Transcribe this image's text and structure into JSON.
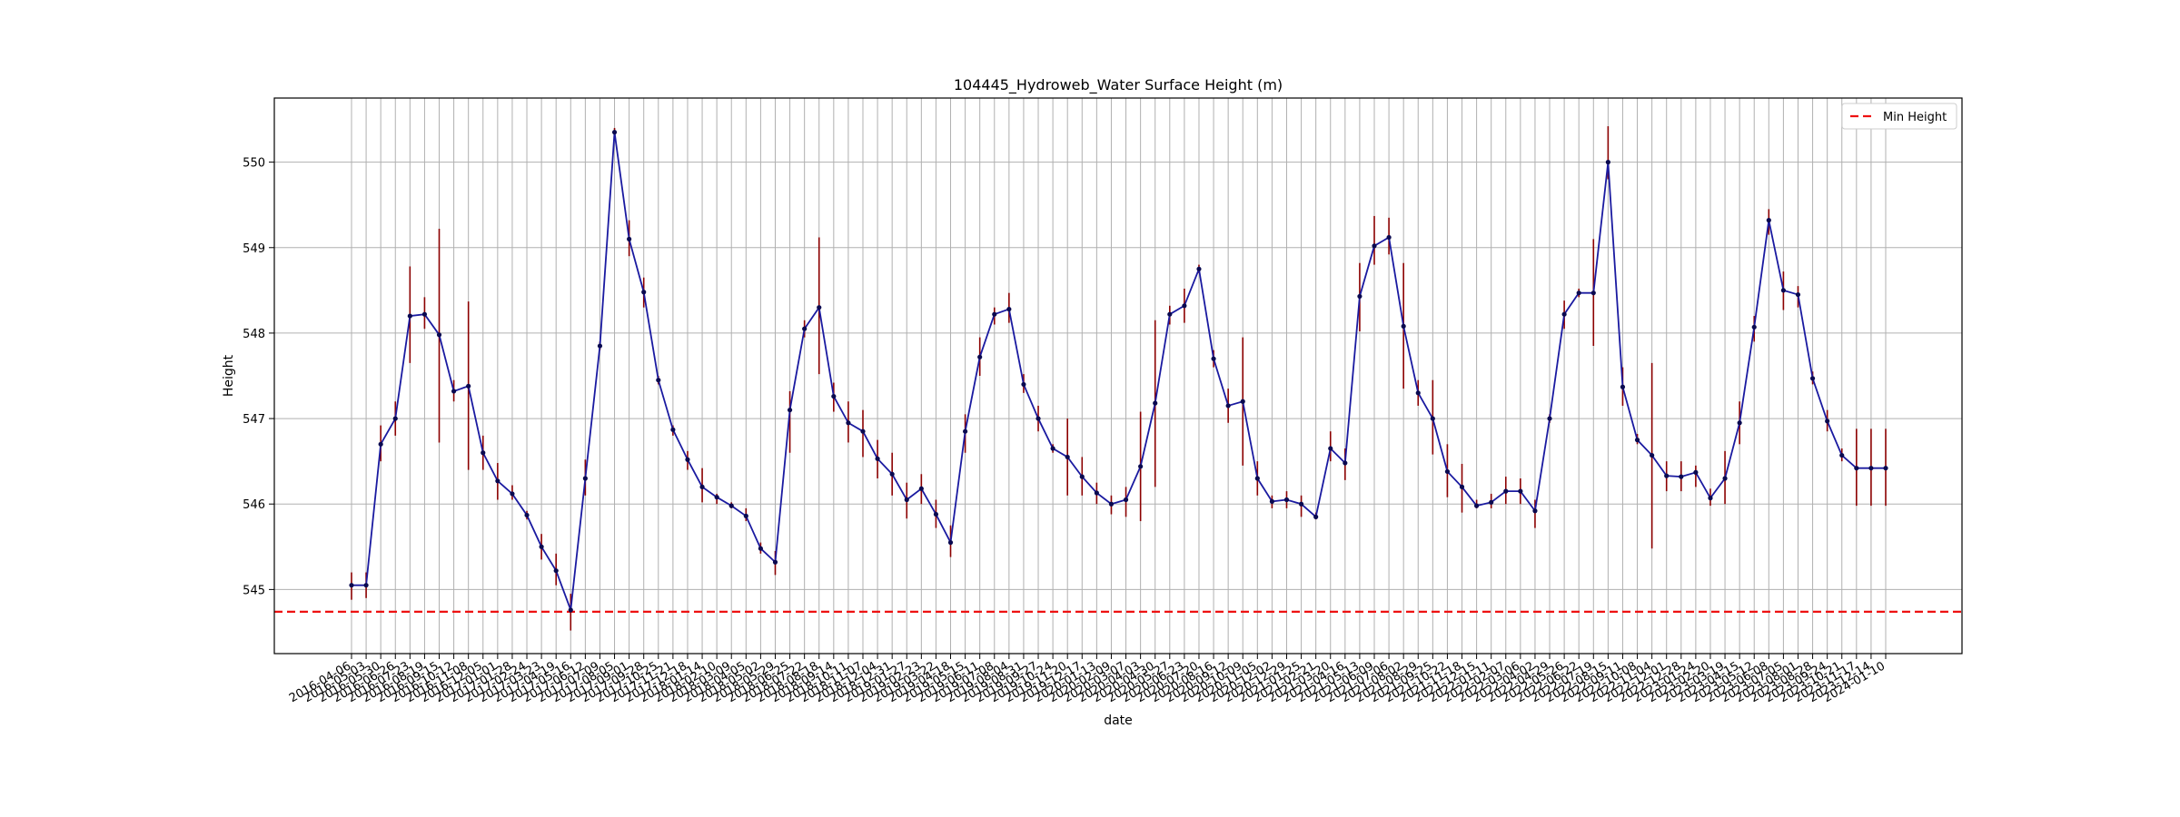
{
  "chart_data": {
    "type": "line",
    "title": "104445_Hydroweb_Water Surface Height (m)",
    "xlabel": "date",
    "ylabel": "Height",
    "ylim": [
      544.25,
      550.75
    ],
    "yticks": [
      545,
      546,
      547,
      548,
      549,
      550
    ],
    "grid": true,
    "legend_position": "top-right",
    "legend": [
      {
        "name": "Min Height",
        "style": "dashed",
        "color": "#ee1111"
      }
    ],
    "min_height": 544.74,
    "colors": {
      "line": "#1a1aa0",
      "marker": "#0a0a50",
      "error": "#8b0000",
      "min_line": "#ee1111",
      "grid": "#b0b0b0"
    },
    "series": [
      {
        "name": "Water Surface Height",
        "x": [
          "2016-04-06",
          "2016-05-03",
          "2016-05-30",
          "2016-06-26",
          "2016-07-23",
          "2016-08-19",
          "2016-09-15",
          "2016-10-12",
          "2016-11-08",
          "2016-12-05",
          "2017-01-01",
          "2017-01-28",
          "2017-02-24",
          "2017-03-23",
          "2017-04-19",
          "2017-05-16",
          "2017-06-12",
          "2017-07-09",
          "2017-08-05",
          "2017-09-01",
          "2017-09-28",
          "2017-10-25",
          "2017-11-21",
          "2017-12-18",
          "2018-01-14",
          "2018-02-10",
          "2018-03-09",
          "2018-04-05",
          "2018-05-02",
          "2018-05-29",
          "2018-06-25",
          "2018-07-22",
          "2018-08-18",
          "2018-09-14",
          "2018-10-11",
          "2018-11-07",
          "2018-12-04",
          "2018-12-31",
          "2019-01-27",
          "2019-02-23",
          "2019-03-22",
          "2019-04-18",
          "2019-05-15",
          "2019-06-11",
          "2019-07-08",
          "2019-08-04",
          "2019-08-31",
          "2019-09-27",
          "2019-10-24",
          "2019-11-20",
          "2019-12-17",
          "2020-01-13",
          "2020-02-09",
          "2020-03-07",
          "2020-04-03",
          "2020-04-30",
          "2020-05-27",
          "2020-06-23",
          "2020-07-20",
          "2020-08-16",
          "2020-09-12",
          "2020-10-09",
          "2020-11-05",
          "2020-12-02",
          "2020-12-29",
          "2021-01-25",
          "2021-02-21",
          "2021-03-20",
          "2021-04-16",
          "2021-05-13",
          "2021-06-09",
          "2021-07-06",
          "2021-08-02",
          "2021-08-29",
          "2021-09-25",
          "2021-10-22",
          "2021-11-18",
          "2021-12-15",
          "2022-01-11",
          "2022-02-07",
          "2022-03-06",
          "2022-04-02",
          "2022-04-29",
          "2022-05-26",
          "2022-06-22",
          "2022-07-19",
          "2022-08-15",
          "2022-09-11",
          "2022-10-08",
          "2022-11-04",
          "2022-12-01",
          "2022-12-28",
          "2023-01-24",
          "2023-02-20",
          "2023-03-19",
          "2023-04-15",
          "2023-05-12",
          "2023-06-08",
          "2023-07-05",
          "2023-08-01",
          "2023-08-28",
          "2023-09-24",
          "2023-10-21",
          "2023-11-17",
          "2023-12-14",
          "2024-01-10"
        ],
        "values": [
          545.05,
          545.05,
          546.7,
          547.0,
          548.2,
          548.22,
          547.98,
          547.32,
          547.38,
          546.6,
          546.27,
          546.12,
          545.87,
          545.5,
          545.22,
          544.76,
          546.3,
          547.85,
          550.35,
          549.1,
          548.48,
          547.45,
          546.87,
          546.52,
          546.2,
          546.08,
          545.98,
          545.86,
          545.48,
          545.32,
          547.1,
          548.05,
          548.3,
          547.26,
          546.95,
          546.85,
          546.53,
          546.35,
          546.05,
          546.18,
          545.88,
          545.55,
          546.85,
          547.72,
          548.22,
          548.28,
          547.4,
          547.0,
          546.65,
          546.55,
          546.32,
          546.13,
          546.0,
          546.05,
          546.44,
          547.18,
          548.22,
          548.32,
          548.75,
          547.7,
          547.15,
          547.2,
          546.3,
          546.03,
          546.05,
          546.0,
          545.85,
          546.65,
          546.48,
          548.43,
          549.02,
          549.12,
          548.08,
          547.3,
          547.0,
          546.38,
          546.2,
          545.98,
          546.02,
          546.15,
          546.15,
          545.92,
          547.0,
          548.22,
          548.47,
          548.47,
          550.0,
          547.37,
          546.75,
          546.57,
          546.33,
          546.32,
          546.37,
          546.07,
          546.3,
          546.95,
          548.07,
          549.32,
          548.5,
          548.45,
          547.47,
          546.97,
          546.57,
          546.42,
          546.42,
          546.42
        ],
        "error_low": [
          544.88,
          544.9,
          546.5,
          546.8,
          547.65,
          548.05,
          546.72,
          547.2,
          546.4,
          546.4,
          546.05,
          546.05,
          545.82,
          545.35,
          545.05,
          544.52,
          546.1,
          547.8,
          550.3,
          548.9,
          548.3,
          547.4,
          546.8,
          546.4,
          546.02,
          546.0,
          545.95,
          545.8,
          545.42,
          545.17,
          546.6,
          547.95,
          547.52,
          547.08,
          546.72,
          546.55,
          546.3,
          546.1,
          545.83,
          546.0,
          545.72,
          545.38,
          546.6,
          547.5,
          548.1,
          548.12,
          547.3,
          546.85,
          546.6,
          546.1,
          546.1,
          546.0,
          545.88,
          545.85,
          545.8,
          546.2,
          548.1,
          548.12,
          548.7,
          547.6,
          546.95,
          546.45,
          546.1,
          545.95,
          545.95,
          545.85,
          545.82,
          546.5,
          546.28,
          548.02,
          548.8,
          548.92,
          547.35,
          547.15,
          546.58,
          546.08,
          545.9,
          545.95,
          545.95,
          546.0,
          546.0,
          545.72,
          546.95,
          548.05,
          548.42,
          547.85,
          549.8,
          547.15,
          546.7,
          545.48,
          546.15,
          546.15,
          546.2,
          545.98,
          546.0,
          546.7,
          547.9,
          549.15,
          548.27,
          548.3,
          547.4,
          546.85,
          546.5,
          545.98,
          545.98,
          545.98
        ],
        "error_high": [
          545.2,
          545.2,
          546.92,
          547.2,
          548.78,
          548.42,
          549.22,
          547.45,
          548.37,
          546.8,
          546.48,
          546.22,
          545.92,
          545.65,
          545.42,
          544.95,
          546.52,
          547.9,
          550.4,
          549.32,
          548.65,
          547.5,
          546.92,
          546.62,
          546.42,
          546.12,
          546.02,
          545.95,
          545.55,
          545.45,
          547.32,
          548.15,
          549.12,
          547.42,
          547.2,
          547.1,
          546.75,
          546.6,
          546.25,
          546.35,
          546.05,
          545.75,
          547.05,
          547.95,
          548.3,
          548.47,
          547.52,
          547.15,
          546.7,
          547.0,
          546.55,
          546.25,
          546.1,
          546.2,
          547.08,
          548.15,
          548.32,
          548.52,
          548.8,
          547.8,
          547.35,
          547.95,
          546.5,
          546.1,
          546.15,
          546.1,
          545.9,
          546.85,
          546.65,
          548.82,
          549.37,
          549.35,
          548.82,
          547.45,
          547.45,
          546.7,
          546.47,
          546.05,
          546.12,
          546.32,
          546.3,
          546.05,
          547.05,
          548.38,
          548.52,
          549.1,
          550.42,
          547.6,
          546.82,
          547.65,
          546.5,
          546.5,
          546.45,
          546.18,
          546.62,
          547.2,
          548.2,
          549.45,
          548.72,
          548.55,
          547.55,
          547.1,
          546.65,
          546.88,
          546.88,
          546.88
        ]
      }
    ]
  }
}
